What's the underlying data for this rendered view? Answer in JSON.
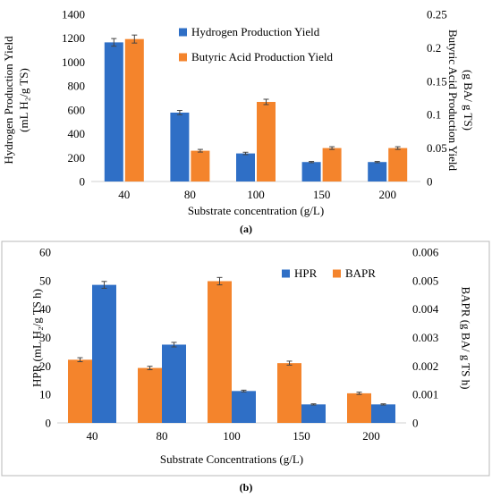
{
  "chart_data": [
    {
      "id": "a",
      "type": "bar",
      "panel_label": "(a)",
      "categories": [
        "40",
        "80",
        "100",
        "150",
        "200"
      ],
      "xlabel": "Substrate concentration (g/L)",
      "ylabel_lines": [
        "Hydrogen Production Yield",
        "(mL H₂/g TS)"
      ],
      "y2label_lines": [
        "Butyric Acid Production Yield",
        "(g BA/ g TS)"
      ],
      "ylim": [
        0,
        1400
      ],
      "yticks": [
        0,
        200,
        400,
        600,
        800,
        1000,
        1200,
        1400
      ],
      "ytick_labels": [
        "0",
        "200",
        "400",
        "600",
        "800",
        "1000",
        "1200",
        "1400"
      ],
      "y2lim": [
        0,
        0.25
      ],
      "y2ticks": [
        0,
        0.05,
        0.1,
        0.15,
        0.2,
        0.25
      ],
      "y2tick_labels": [
        "0",
        "0.05",
        "0.1",
        "0.15",
        "0.2",
        "0.25"
      ],
      "legend_position": "top-right",
      "legend_order": [
        "hyp",
        "bap"
      ],
      "series": [
        {
          "key": "hyp",
          "name": "Hydrogen Production Yield",
          "axis": "left",
          "slot": 0,
          "color": "#2f6fc6",
          "values": [
            1165,
            577,
            235,
            163,
            163
          ],
          "errors": [
            32,
            18,
            10,
            5,
            5
          ]
        },
        {
          "key": "bap",
          "name": "Butyric Acid Production Yield",
          "axis": "right",
          "slot": 1,
          "color": "#f4842c",
          "values": [
            0.213,
            0.046,
            0.119,
            0.05,
            0.05
          ],
          "errors": [
            0.006,
            0.002,
            0.004,
            0.002,
            0.002
          ]
        }
      ]
    },
    {
      "id": "b",
      "type": "bar",
      "panel_label": "(b)",
      "categories": [
        "40",
        "80",
        "100",
        "150",
        "200"
      ],
      "xlabel": "Substrate Concentrations (g/L)",
      "ylabel_lines": [
        "HPR (mL H₂/g TS h)"
      ],
      "y2label_lines": [
        "BAPR (g BA/ g TS h)"
      ],
      "ylim": [
        0,
        60
      ],
      "yticks": [
        0,
        10,
        20,
        30,
        40,
        50,
        60
      ],
      "ytick_labels": [
        "0",
        "10",
        "20",
        "30",
        "40",
        "50",
        "60"
      ],
      "y2lim": [
        0,
        0.006
      ],
      "y2ticks": [
        0,
        0.001,
        0.002,
        0.003,
        0.004,
        0.005,
        0.006
      ],
      "y2tick_labels": [
        "0",
        "0.001",
        "0.002",
        "0.003",
        "0.004",
        "0.005",
        "0.006"
      ],
      "legend_position": "top-right",
      "legend_order": [
        "hpr",
        "bapr"
      ],
      "series": [
        {
          "key": "hpr",
          "name": "HPR",
          "axis": "left",
          "slot": 1,
          "color": "#2f6fc6",
          "values": [
            48.5,
            27.5,
            11.2,
            6.5,
            6.5
          ],
          "errors": [
            1.2,
            0.8,
            0.3,
            0.2,
            0.2
          ]
        },
        {
          "key": "bapr",
          "name": "BAPR",
          "axis": "right",
          "slot": 0,
          "color": "#f4842c",
          "values": [
            0.00222,
            0.00193,
            0.00498,
            0.0021,
            0.00104
          ],
          "errors": [
            7e-05,
            6e-05,
            0.00013,
            7e-05,
            4e-05
          ]
        }
      ]
    }
  ]
}
